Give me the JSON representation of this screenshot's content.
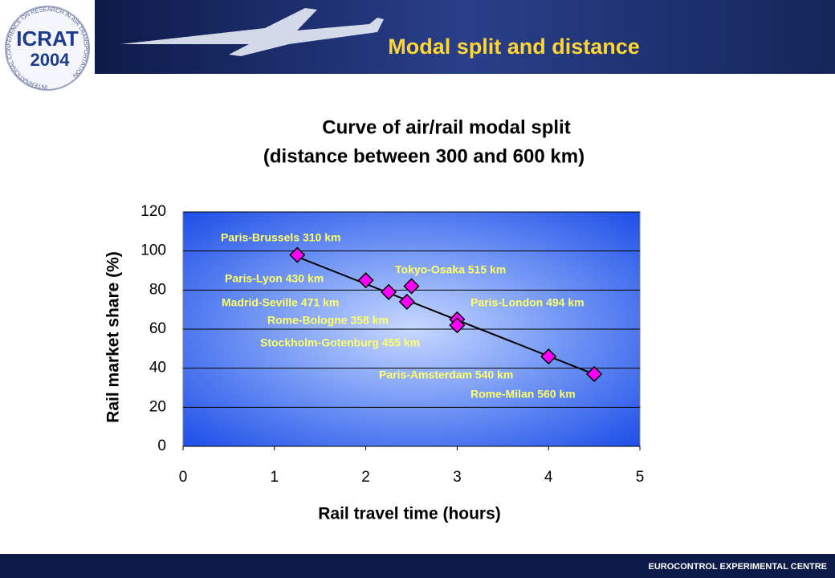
{
  "header": {
    "title": "Modal split and distance"
  },
  "logo": {
    "name": "ICRAT",
    "year": "2004",
    "ring": "INTERNATIONAL CONFERENCE ON RESEARCH IN AIR TRANSPORTATION"
  },
  "footer": {
    "text": "EUROCONTROL EXPERIMENTAL CENTRE"
  },
  "chart_data": {
    "type": "scatter",
    "title": "Curve of air/rail modal split",
    "subtitle": "(distance between 300 and 600 km)",
    "xlabel": "Rail travel time (hours)",
    "ylabel": "Rail market share (%)",
    "xlim": [
      0,
      5
    ],
    "xticks": [
      0,
      1,
      2,
      3,
      4,
      5
    ],
    "ylim": [
      0,
      120
    ],
    "yticks": [
      0,
      20,
      40,
      60,
      80,
      100,
      120
    ],
    "grid": true,
    "color": "#ff00ff",
    "point_labels": [
      "Paris-Brussels 310 km",
      "Tokyo-Osaka 515 km",
      "Paris-Lyon 430 km",
      "Madrid-Seville 471 km",
      "Paris-London 494 km",
      "Rome-Bologne 358 km",
      "Stockholm-Gotenburg 455 km",
      "Paris-Amsterdam 540 km",
      "Rome-Milan 560 km"
    ],
    "x": [
      1.25,
      2.5,
      2.0,
      2.25,
      3.0,
      2.45,
      3.0,
      4.0,
      4.5
    ],
    "values": [
      98,
      82,
      85,
      79,
      65,
      74,
      62,
      46,
      37
    ],
    "trendline": {
      "x": [
        1.25,
        4.55
      ],
      "values": [
        97,
        36
      ]
    }
  }
}
